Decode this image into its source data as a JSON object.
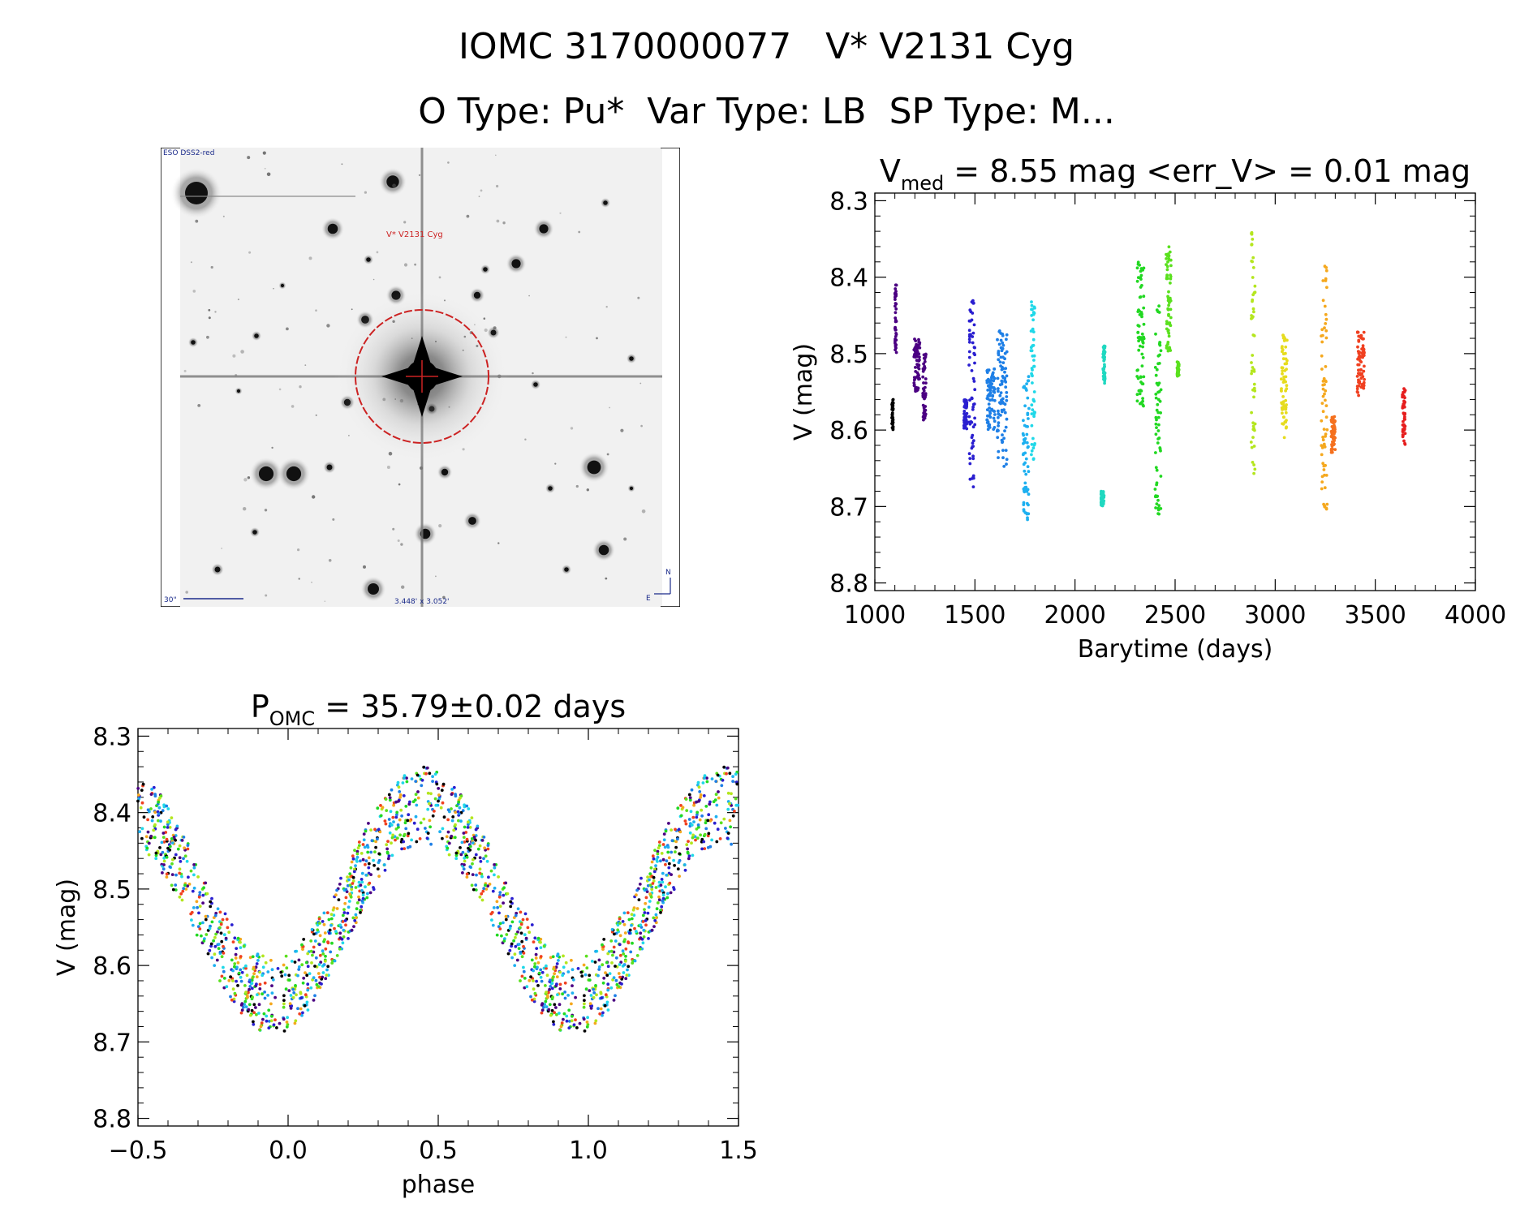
{
  "header": {
    "line1": "IOMC 3170000077   V* V2131 Cyg",
    "line2": "O Type: Pu*  Var Type: LB  SP Type: M..."
  },
  "finder": {
    "survey_label": "ESO DSS2-red",
    "target_label": "V* V2131 Cyg",
    "scale_label": "30\"",
    "fov_label": "3.448' x 3.052'",
    "north_label": "N",
    "east_label": "E",
    "circle_color": "#cc2222",
    "label_color": "#1a2a8a"
  },
  "chart_data": [
    {
      "type": "scatter",
      "title_main": "V",
      "title_sub": "med",
      "title_rest": " = 8.55 mag <err_V> = 0.01 mag",
      "xlabel": "Barytime (days)",
      "ylabel": "V (mag)",
      "xlim": [
        1000,
        4000
      ],
      "ylim": [
        8.81,
        8.29
      ],
      "y_inverted": true,
      "xticks": [
        1000,
        1500,
        2000,
        2500,
        3000,
        3500,
        4000
      ],
      "yticks": [
        8.3,
        8.4,
        8.5,
        8.6,
        8.7,
        8.8
      ],
      "grid": false,
      "series": [
        {
          "color": "#000000",
          "x": [
            1085,
            1092
          ],
          "y_range": [
            8.6,
            8.56
          ]
        },
        {
          "color": "#4b0082",
          "x": [
            1100,
            1108
          ],
          "y_range": [
            8.5,
            8.41
          ]
        },
        {
          "color": "#4b0082",
          "x": [
            1195,
            1225
          ],
          "y_range": [
            8.55,
            8.48
          ]
        },
        {
          "color": "#4b0082",
          "x": [
            1240,
            1255
          ],
          "y_range": [
            8.59,
            8.5
          ]
        },
        {
          "color": "#2a1fd0",
          "x": [
            1445,
            1460
          ],
          "y_range": [
            8.6,
            8.56
          ]
        },
        {
          "color": "#2a1fd0",
          "x": [
            1470,
            1500
          ],
          "y_range": [
            8.68,
            8.43
          ]
        },
        {
          "color": "#1e7fe6",
          "x": [
            1560,
            1600
          ],
          "y_range": [
            8.6,
            8.52
          ]
        },
        {
          "color": "#1e7fe6",
          "x": [
            1610,
            1660
          ],
          "y_range": [
            8.65,
            8.47
          ]
        },
        {
          "color": "#1eb0f0",
          "x": [
            1740,
            1770
          ],
          "y_range": [
            8.72,
            8.53
          ]
        },
        {
          "color": "#20d8e8",
          "x": [
            1780,
            1800
          ],
          "y_range": [
            8.64,
            8.43
          ]
        },
        {
          "color": "#20d8c0",
          "x": [
            2130,
            2145
          ],
          "y_range": [
            8.7,
            8.68
          ]
        },
        {
          "color": "#20d8c0",
          "x": [
            2140,
            2150
          ],
          "y_range": [
            8.54,
            8.49
          ]
        },
        {
          "color": "#22d822",
          "x": [
            2310,
            2345
          ],
          "y_range": [
            8.57,
            8.38
          ]
        },
        {
          "color": "#22d822",
          "x": [
            2400,
            2430
          ],
          "y_range": [
            8.71,
            8.43
          ]
        },
        {
          "color": "#5ae01e",
          "x": [
            2455,
            2480
          ],
          "y_range": [
            8.5,
            8.36
          ]
        },
        {
          "color": "#5ae01e",
          "x": [
            2510,
            2520
          ],
          "y_range": [
            8.53,
            8.51
          ]
        },
        {
          "color": "#b4e61e",
          "x": [
            2880,
            2900
          ],
          "y_range": [
            8.66,
            8.34
          ]
        },
        {
          "color": "#e6dc1e",
          "x": [
            3030,
            3060
          ],
          "y_range": [
            8.61,
            8.47
          ]
        },
        {
          "color": "#f5a81e",
          "x": [
            3230,
            3260
          ],
          "y_range": [
            8.71,
            8.37
          ]
        },
        {
          "color": "#f5701e",
          "x": [
            3280,
            3300
          ],
          "y_range": [
            8.63,
            8.58
          ]
        },
        {
          "color": "#f04020",
          "x": [
            3410,
            3445
          ],
          "y_range": [
            8.56,
            8.47
          ]
        },
        {
          "color": "#e61e1e",
          "x": [
            3635,
            3650
          ],
          "y_range": [
            8.62,
            8.54
          ]
        }
      ]
    },
    {
      "type": "scatter",
      "title_main": "P",
      "title_sub": "OMC",
      "title_rest": " = 35.79±0.02 days",
      "xlabel": "phase",
      "ylabel": "V (mag)",
      "xlim": [
        -0.5,
        1.5
      ],
      "ylim": [
        8.81,
        8.29
      ],
      "y_inverted": true,
      "xticks": [
        -0.5,
        0.0,
        0.5,
        1.0,
        1.5
      ],
      "xtick_labels": [
        "−0.5",
        "0.0",
        "0.5",
        "1.0",
        "1.5"
      ],
      "yticks": [
        8.3,
        8.4,
        8.5,
        8.6,
        8.7,
        8.8
      ],
      "grid": false,
      "model": {
        "min_phase": 0.0,
        "min_mag": 8.64,
        "max_phase": 0.45,
        "max_mag": 8.39,
        "period": 1.0
      },
      "series_colors": [
        "#4b0082",
        "#2a1fd0",
        "#1e7fe6",
        "#1eb0f0",
        "#20d8e8",
        "#22d822",
        "#5ae01e",
        "#b4e61e",
        "#f5a81e",
        "#f04020",
        "#000000"
      ]
    }
  ]
}
